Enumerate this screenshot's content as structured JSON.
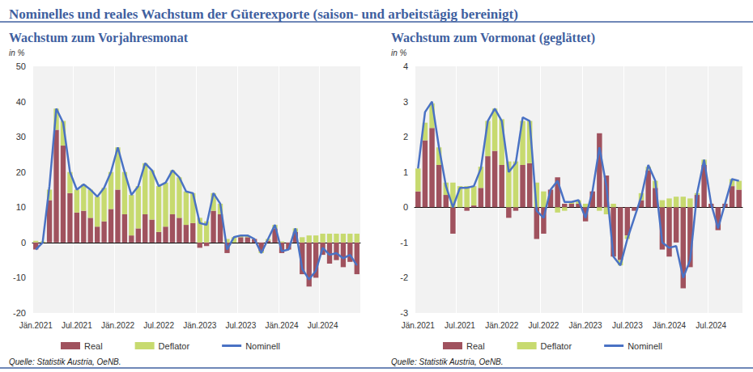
{
  "title": "Nominelles und reales Wachstum der Güterexporte (saison- und arbeitstägig bereinigt)",
  "chart_data": [
    {
      "type": "bar",
      "title": "Wachstum zum Vorjahresmonat",
      "y_label": "in %",
      "note": "Quelle: Statistik Austria, OeNB.",
      "stacked": true,
      "grid": false,
      "legend": "bottom",
      "categories": [
        "Jän.2021",
        null,
        null,
        null,
        null,
        null,
        "Jul.2021",
        null,
        null,
        null,
        null,
        null,
        "Jän.2022",
        null,
        null,
        null,
        null,
        null,
        "Jul.2022",
        null,
        null,
        null,
        null,
        null,
        "Jän.2023",
        null,
        null,
        null,
        null,
        null,
        "Jul.2023",
        null,
        null,
        null,
        null,
        null,
        "Jän.2024",
        null,
        null,
        null,
        null,
        null,
        "Jul.2024",
        null,
        null,
        null,
        null,
        null
      ],
      "series": [
        {
          "name": "Real",
          "type": "bar",
          "color": "#a0525e",
          "values": [
            -2,
            0,
            12,
            32,
            27.5,
            14,
            8.5,
            9,
            7,
            4.5,
            6,
            9.5,
            15,
            8,
            2,
            4,
            8,
            6.5,
            3,
            4.5,
            8,
            7,
            5,
            5.5,
            -1.5,
            -1,
            9,
            8,
            -3,
            0,
            1.5,
            1.5,
            1,
            -2.5,
            0.5,
            4,
            -3,
            -2,
            3,
            -9,
            -12.5,
            -10,
            -3.5,
            -6,
            -5,
            -7,
            -5.5,
            -9
          ]
        },
        {
          "name": "Deflator",
          "type": "bar",
          "color": "#c7da6f",
          "values": [
            0.5,
            0.3,
            3,
            6,
            7,
            6,
            6.5,
            7.5,
            8,
            8.5,
            9.5,
            10.5,
            12,
            12,
            11.5,
            12,
            14.5,
            14,
            13,
            12.5,
            12.5,
            11.5,
            9.5,
            8.5,
            7,
            6,
            5,
            3,
            1,
            1.5,
            0.5,
            0.5,
            0,
            -0.5,
            0.5,
            1,
            0.3,
            0,
            1,
            1.5,
            2,
            2,
            2.5,
            2.5,
            2.5,
            2.5,
            2.5,
            2.5
          ]
        },
        {
          "name": "Nominell",
          "type": "line",
          "color": "#4a72c4",
          "values": [
            -2,
            0,
            16,
            38,
            34,
            20,
            15,
            16.5,
            15,
            13,
            15.5,
            20,
            27,
            20,
            13.5,
            16,
            22.5,
            20.5,
            16,
            17,
            20.5,
            18.5,
            14.5,
            14,
            5.5,
            5,
            14,
            11,
            -2,
            1.5,
            2,
            2,
            1,
            -3,
            1,
            5,
            -2.5,
            -2,
            4,
            -7.5,
            -10.5,
            -8,
            -1.5,
            -3.5,
            -3,
            -4.5,
            -3.5,
            -6.5
          ]
        }
      ],
      "ylim": [
        -20,
        50
      ],
      "yticks": [
        -20,
        -10,
        0,
        10,
        20,
        30,
        40,
        50
      ]
    },
    {
      "type": "bar",
      "title": "Wachstum zum Vormonat (geglättet)",
      "y_label": "in %",
      "note": "Quelle: Statistik Austria, OeNB.",
      "stacked": true,
      "grid": false,
      "legend": "bottom",
      "categories": [
        "Jän.2021",
        null,
        null,
        null,
        null,
        null,
        "Jul.2021",
        null,
        null,
        null,
        null,
        null,
        "Jän.2022",
        null,
        null,
        null,
        null,
        null,
        "Jul.2022",
        null,
        null,
        null,
        null,
        null,
        "Jän.2023",
        null,
        null,
        null,
        null,
        null,
        "Jul.2023",
        null,
        null,
        null,
        null,
        null,
        "Jän.2024",
        null,
        null,
        null,
        null,
        null,
        "Jul.2024",
        null,
        null,
        null,
        null
      ],
      "series": [
        {
          "name": "Real",
          "type": "bar",
          "color": "#a0525e",
          "values": [
            0.45,
            1.9,
            2.25,
            1.2,
            0.35,
            -0.75,
            0,
            -0.1,
            0.05,
            0.55,
            1.45,
            1.6,
            1.2,
            -0.3,
            -0.1,
            1.2,
            1.25,
            -0.9,
            -0.75,
            0.5,
            0.85,
            0.1,
            0.1,
            0.1,
            -0.4,
            0.45,
            2.1,
            0.9,
            -1.4,
            -1.5,
            -0.8,
            -0.1,
            0.2,
            1.05,
            0.55,
            -1.2,
            -1.4,
            -1,
            -2.3,
            -1.7,
            0.35,
            1.2,
            0.1,
            -0.65,
            0.1,
            0.6,
            0.5
          ]
        },
        {
          "name": "Deflator",
          "type": "bar",
          "color": "#c7da6f",
          "values": [
            0.65,
            0.5,
            0.7,
            0.5,
            0.35,
            0.7,
            0.6,
            0.6,
            0.55,
            0.6,
            1,
            1.2,
            1.3,
            1.3,
            1.3,
            1.25,
            1.2,
            0.7,
            0.45,
            0,
            -0.15,
            -0.1,
            0.05,
            0.1,
            0.1,
            0,
            -0.1,
            -0.2,
            0.1,
            -0.15,
            -0.1,
            0,
            0.2,
            0.1,
            0.2,
            0.2,
            0.25,
            0.3,
            0.3,
            0.25,
            0.05,
            0.15,
            0,
            0,
            0,
            0.2,
            0.25
          ]
        },
        {
          "name": "Nominell",
          "type": "line",
          "color": "#4a72c4",
          "values": [
            1.1,
            2.7,
            3,
            1.7,
            0.6,
            0,
            0.55,
            0.55,
            0.6,
            1.1,
            2.45,
            2.8,
            2.45,
            1,
            1.25,
            2.55,
            2.45,
            -0.1,
            -0.3,
            0.5,
            0.75,
            0.15,
            0.15,
            0.2,
            -0.3,
            0.45,
            1.7,
            0.6,
            -1.4,
            -1.65,
            -0.9,
            -0.3,
            0.3,
            1.2,
            0.75,
            -1,
            -1.15,
            -1.1,
            -2,
            -1.5,
            0.4,
            1.35,
            0.1,
            -0.6,
            0.1,
            0.8,
            0.75
          ]
        }
      ],
      "ylim": [
        -3,
        4
      ],
      "yticks": [
        -3,
        -2,
        -1,
        0,
        1,
        2,
        3,
        4
      ]
    }
  ]
}
